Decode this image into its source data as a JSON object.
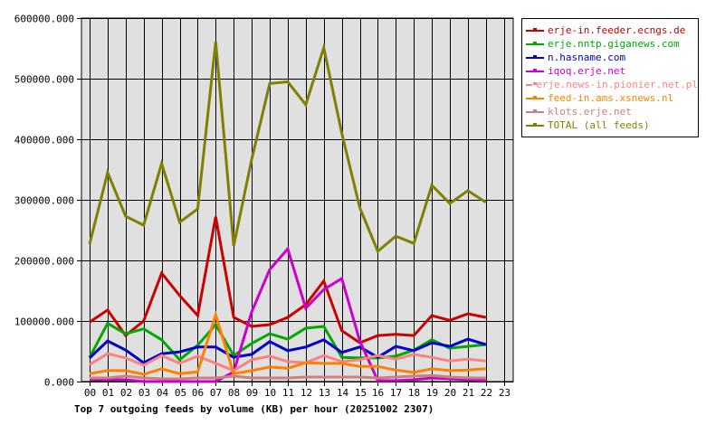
{
  "chart_data": {
    "type": "line",
    "title": "Top 7 outgoing feeds by volume (KB) per hour (20251002 2307)",
    "xlabel": "",
    "ylabel": "",
    "ylim": [
      0,
      600000
    ],
    "yticks": [
      "0.000",
      "100000.000",
      "200000.000",
      "300000.000",
      "400000.000",
      "500000.000",
      "600000.000"
    ],
    "categories": [
      "00",
      "01",
      "02",
      "03",
      "04",
      "05",
      "06",
      "07",
      "08",
      "09",
      "10",
      "11",
      "12",
      "13",
      "14",
      "15",
      "16",
      "17",
      "18",
      "19",
      "20",
      "21",
      "22",
      "23"
    ],
    "grid": true,
    "legend_position": "right-top",
    "series": [
      {
        "name": "erje-in.feeder.ecngs.de",
        "color": "#cc0000",
        "values": [
          98000,
          118000,
          76000,
          100000,
          179000,
          142000,
          109000,
          272000,
          106000,
          91000,
          94000,
          106000,
          127000,
          166000,
          84000,
          64000,
          76000,
          78000,
          76000,
          109000,
          101000,
          112000,
          106000
        ]
      },
      {
        "name": "erje.nntp.giganews.com",
        "color": "#00aa00",
        "values": [
          40000,
          96000,
          79000,
          87000,
          69000,
          36000,
          60000,
          94000,
          43000,
          63000,
          79000,
          70000,
          88000,
          91000,
          40000,
          39000,
          39000,
          42000,
          52000,
          69000,
          55000,
          58000,
          61000
        ]
      },
      {
        "name": "n.hasname.com",
        "color": "#0000cc",
        "values": [
          39000,
          67000,
          52000,
          31000,
          46000,
          49000,
          57000,
          57000,
          40000,
          45000,
          66000,
          51000,
          57000,
          69000,
          48000,
          57000,
          40000,
          58000,
          51000,
          64000,
          58000,
          70000,
          61000
        ]
      },
      {
        "name": "iqoq.erje.net",
        "color": "#cc00cc",
        "values": [
          3000,
          3000,
          3000,
          0,
          0,
          0,
          0,
          0,
          16000,
          115000,
          185000,
          219000,
          121000,
          152000,
          170000,
          67000,
          1500,
          1500,
          3000,
          6000,
          4500,
          3000,
          1500
        ]
      },
      {
        "name": "erje.news-in.pionier.net.pl",
        "color": "#ff8080",
        "values": [
          28000,
          46000,
          39000,
          27000,
          43000,
          30000,
          42000,
          30000,
          18000,
          36000,
          42000,
          33000,
          31000,
          43000,
          33000,
          36000,
          43000,
          37000,
          45000,
          40000,
          34000,
          37000,
          34000
        ]
      },
      {
        "name": "feed-in.ams.xsnews.nl",
        "color": "#ff8000",
        "values": [
          13000,
          18000,
          18000,
          12000,
          21000,
          13000,
          16000,
          110000,
          13000,
          18000,
          24000,
          22000,
          31000,
          30000,
          30000,
          25000,
          25000,
          19000,
          15000,
          21000,
          18000,
          19000,
          21000
        ]
      },
      {
        "name": "klots.erje.net",
        "color": "#cc8080",
        "values": [
          6000,
          6000,
          9000,
          6000,
          4500,
          4500,
          6000,
          6000,
          9000,
          6000,
          6000,
          6000,
          7500,
          7500,
          7500,
          7500,
          6000,
          7500,
          9000,
          10000,
          7500,
          6000,
          6000
        ]
      },
      {
        "name": "TOTAL (all feeds)",
        "color": "#808000",
        "values": [
          227000,
          345000,
          273000,
          258000,
          360000,
          263000,
          285000,
          561000,
          224000,
          367000,
          492000,
          495000,
          457000,
          551000,
          410000,
          287000,
          215000,
          240000,
          228000,
          324000,
          294000,
          315000,
          296000
        ]
      }
    ]
  },
  "legend": {
    "items": [
      {
        "label": "erje-in.feeder.ecngs.de",
        "color": "#cc0000"
      },
      {
        "label": "erje.nntp.giganews.com",
        "color": "#00aa00"
      },
      {
        "label": "n.hasname.com",
        "color": "#0000cc"
      },
      {
        "label": "iqoq.erje.net",
        "color": "#cc00cc"
      },
      {
        "label": "erje.news-in.pionier.net.pl",
        "color": "#ff8080"
      },
      {
        "label": "feed-in.ams.xsnews.nl",
        "color": "#ff8000"
      },
      {
        "label": "klots.erje.net",
        "color": "#cc8080"
      },
      {
        "label": "TOTAL (all feeds)",
        "color": "#808000"
      }
    ]
  },
  "colors": {
    "plot_background": "#e0e0e0",
    "grid": "#000000",
    "page_background": "#ffffff"
  }
}
